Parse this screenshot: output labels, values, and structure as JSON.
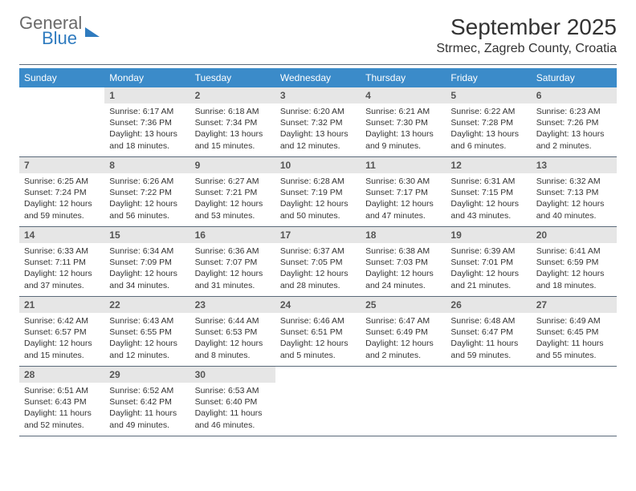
{
  "logo": {
    "line1": "General",
    "line2": "Blue"
  },
  "title": "September 2025",
  "location": "Strmec, Zagreb County, Croatia",
  "colors": {
    "header_bg": "#3b8bc9",
    "header_text": "#ffffff",
    "daynum_bg": "#e6e6e6",
    "divider": "#5a6a7a",
    "logo_gray": "#6a6a6a",
    "logo_blue": "#2f7bbf"
  },
  "days_of_week": [
    "Sunday",
    "Monday",
    "Tuesday",
    "Wednesday",
    "Thursday",
    "Friday",
    "Saturday"
  ],
  "weeks": [
    [
      {
        "n": "",
        "lines": []
      },
      {
        "n": "1",
        "lines": [
          "Sunrise: 6:17 AM",
          "Sunset: 7:36 PM",
          "Daylight: 13 hours",
          "and 18 minutes."
        ]
      },
      {
        "n": "2",
        "lines": [
          "Sunrise: 6:18 AM",
          "Sunset: 7:34 PM",
          "Daylight: 13 hours",
          "and 15 minutes."
        ]
      },
      {
        "n": "3",
        "lines": [
          "Sunrise: 6:20 AM",
          "Sunset: 7:32 PM",
          "Daylight: 13 hours",
          "and 12 minutes."
        ]
      },
      {
        "n": "4",
        "lines": [
          "Sunrise: 6:21 AM",
          "Sunset: 7:30 PM",
          "Daylight: 13 hours",
          "and 9 minutes."
        ]
      },
      {
        "n": "5",
        "lines": [
          "Sunrise: 6:22 AM",
          "Sunset: 7:28 PM",
          "Daylight: 13 hours",
          "and 6 minutes."
        ]
      },
      {
        "n": "6",
        "lines": [
          "Sunrise: 6:23 AM",
          "Sunset: 7:26 PM",
          "Daylight: 13 hours",
          "and 2 minutes."
        ]
      }
    ],
    [
      {
        "n": "7",
        "lines": [
          "Sunrise: 6:25 AM",
          "Sunset: 7:24 PM",
          "Daylight: 12 hours",
          "and 59 minutes."
        ]
      },
      {
        "n": "8",
        "lines": [
          "Sunrise: 6:26 AM",
          "Sunset: 7:22 PM",
          "Daylight: 12 hours",
          "and 56 minutes."
        ]
      },
      {
        "n": "9",
        "lines": [
          "Sunrise: 6:27 AM",
          "Sunset: 7:21 PM",
          "Daylight: 12 hours",
          "and 53 minutes."
        ]
      },
      {
        "n": "10",
        "lines": [
          "Sunrise: 6:28 AM",
          "Sunset: 7:19 PM",
          "Daylight: 12 hours",
          "and 50 minutes."
        ]
      },
      {
        "n": "11",
        "lines": [
          "Sunrise: 6:30 AM",
          "Sunset: 7:17 PM",
          "Daylight: 12 hours",
          "and 47 minutes."
        ]
      },
      {
        "n": "12",
        "lines": [
          "Sunrise: 6:31 AM",
          "Sunset: 7:15 PM",
          "Daylight: 12 hours",
          "and 43 minutes."
        ]
      },
      {
        "n": "13",
        "lines": [
          "Sunrise: 6:32 AM",
          "Sunset: 7:13 PM",
          "Daylight: 12 hours",
          "and 40 minutes."
        ]
      }
    ],
    [
      {
        "n": "14",
        "lines": [
          "Sunrise: 6:33 AM",
          "Sunset: 7:11 PM",
          "Daylight: 12 hours",
          "and 37 minutes."
        ]
      },
      {
        "n": "15",
        "lines": [
          "Sunrise: 6:34 AM",
          "Sunset: 7:09 PM",
          "Daylight: 12 hours",
          "and 34 minutes."
        ]
      },
      {
        "n": "16",
        "lines": [
          "Sunrise: 6:36 AM",
          "Sunset: 7:07 PM",
          "Daylight: 12 hours",
          "and 31 minutes."
        ]
      },
      {
        "n": "17",
        "lines": [
          "Sunrise: 6:37 AM",
          "Sunset: 7:05 PM",
          "Daylight: 12 hours",
          "and 28 minutes."
        ]
      },
      {
        "n": "18",
        "lines": [
          "Sunrise: 6:38 AM",
          "Sunset: 7:03 PM",
          "Daylight: 12 hours",
          "and 24 minutes."
        ]
      },
      {
        "n": "19",
        "lines": [
          "Sunrise: 6:39 AM",
          "Sunset: 7:01 PM",
          "Daylight: 12 hours",
          "and 21 minutes."
        ]
      },
      {
        "n": "20",
        "lines": [
          "Sunrise: 6:41 AM",
          "Sunset: 6:59 PM",
          "Daylight: 12 hours",
          "and 18 minutes."
        ]
      }
    ],
    [
      {
        "n": "21",
        "lines": [
          "Sunrise: 6:42 AM",
          "Sunset: 6:57 PM",
          "Daylight: 12 hours",
          "and 15 minutes."
        ]
      },
      {
        "n": "22",
        "lines": [
          "Sunrise: 6:43 AM",
          "Sunset: 6:55 PM",
          "Daylight: 12 hours",
          "and 12 minutes."
        ]
      },
      {
        "n": "23",
        "lines": [
          "Sunrise: 6:44 AM",
          "Sunset: 6:53 PM",
          "Daylight: 12 hours",
          "and 8 minutes."
        ]
      },
      {
        "n": "24",
        "lines": [
          "Sunrise: 6:46 AM",
          "Sunset: 6:51 PM",
          "Daylight: 12 hours",
          "and 5 minutes."
        ]
      },
      {
        "n": "25",
        "lines": [
          "Sunrise: 6:47 AM",
          "Sunset: 6:49 PM",
          "Daylight: 12 hours",
          "and 2 minutes."
        ]
      },
      {
        "n": "26",
        "lines": [
          "Sunrise: 6:48 AM",
          "Sunset: 6:47 PM",
          "Daylight: 11 hours",
          "and 59 minutes."
        ]
      },
      {
        "n": "27",
        "lines": [
          "Sunrise: 6:49 AM",
          "Sunset: 6:45 PM",
          "Daylight: 11 hours",
          "and 55 minutes."
        ]
      }
    ],
    [
      {
        "n": "28",
        "lines": [
          "Sunrise: 6:51 AM",
          "Sunset: 6:43 PM",
          "Daylight: 11 hours",
          "and 52 minutes."
        ]
      },
      {
        "n": "29",
        "lines": [
          "Sunrise: 6:52 AM",
          "Sunset: 6:42 PM",
          "Daylight: 11 hours",
          "and 49 minutes."
        ]
      },
      {
        "n": "30",
        "lines": [
          "Sunrise: 6:53 AM",
          "Sunset: 6:40 PM",
          "Daylight: 11 hours",
          "and 46 minutes."
        ]
      },
      {
        "n": "",
        "lines": []
      },
      {
        "n": "",
        "lines": []
      },
      {
        "n": "",
        "lines": []
      },
      {
        "n": "",
        "lines": []
      }
    ]
  ]
}
